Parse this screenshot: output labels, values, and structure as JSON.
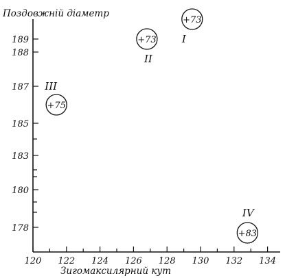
{
  "chart_data": {
    "type": "scatter",
    "title": "",
    "xlabel": "Зигомаксилярний кут",
    "ylabel": "Поздовжній діаметр",
    "xlim": [
      120,
      134.5
    ],
    "x_ticks": [
      "120",
      "122",
      "124",
      "126",
      "128",
      "130",
      "132",
      "134"
    ],
    "y_ticks": [
      "189",
      "188",
      "187",
      "185",
      "183",
      "180",
      "178"
    ],
    "grid": false,
    "legend": "none",
    "points": [
      {
        "group": "I",
        "x": 129.5,
        "y": "189.5",
        "label": "+73"
      },
      {
        "group": "II",
        "x": 126.8,
        "y": "189",
        "label": "+73"
      },
      {
        "group": "III",
        "x": 121.4,
        "y": "186",
        "label": "+75"
      },
      {
        "group": "IV",
        "x": 132.8,
        "y": "177.5",
        "label": "+83"
      }
    ]
  }
}
